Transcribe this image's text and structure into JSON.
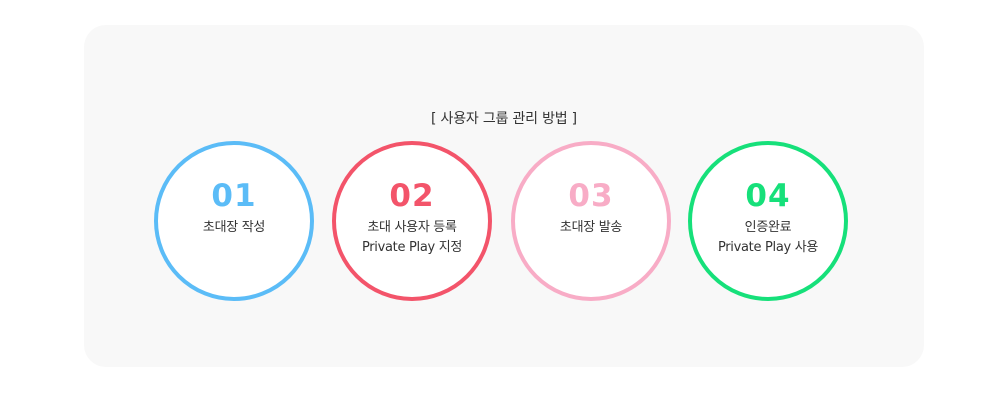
{
  "section": {
    "title": "[ 사용자 그룹 관리 방법 ]"
  },
  "steps": [
    {
      "number": "01",
      "line1": "초대장 작성",
      "line2": "",
      "color": "#5bbcf7"
    },
    {
      "number": "02",
      "line1": "초대 사용자 등록",
      "line2": "Private Play 지정",
      "color": "#f3546a"
    },
    {
      "number": "03",
      "line1": "초대장 발송",
      "line2": "",
      "color": "#f8acc6"
    },
    {
      "number": "04",
      "line1": "인증완료",
      "line2": "Private Play 사용",
      "color": "#16e07a"
    }
  ]
}
